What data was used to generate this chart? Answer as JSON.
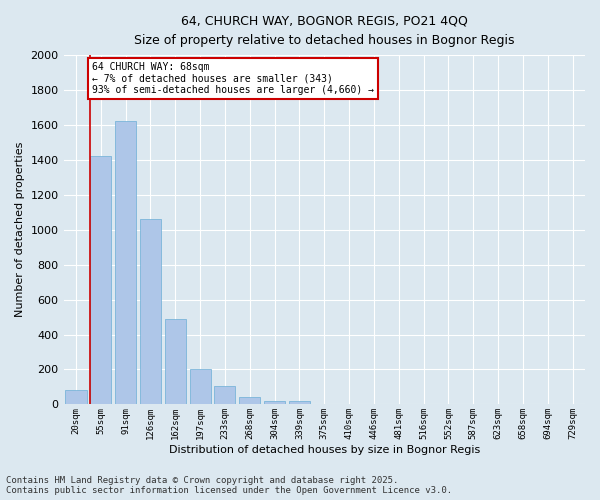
{
  "title_line1": "64, CHURCH WAY, BOGNOR REGIS, PO21 4QQ",
  "title_line2": "Size of property relative to detached houses in Bognor Regis",
  "xlabel": "Distribution of detached houses by size in Bognor Regis",
  "ylabel": "Number of detached properties",
  "categories": [
    "20sqm",
    "55sqm",
    "91sqm",
    "126sqm",
    "162sqm",
    "197sqm",
    "233sqm",
    "268sqm",
    "304sqm",
    "339sqm",
    "375sqm",
    "410sqm",
    "446sqm",
    "481sqm",
    "516sqm",
    "552sqm",
    "587sqm",
    "623sqm",
    "658sqm",
    "694sqm",
    "729sqm"
  ],
  "values": [
    85,
    1420,
    1620,
    1060,
    490,
    205,
    108,
    42,
    22,
    18,
    0,
    0,
    0,
    0,
    0,
    0,
    0,
    0,
    0,
    0,
    0
  ],
  "bar_color": "#aec6e8",
  "bar_edge_color": "#6baed6",
  "red_line_color": "#cc0000",
  "annotation_box_color": "#ffffff",
  "annotation_box_edge_color": "#cc0000",
  "background_color": "#dce8f0",
  "grid_color": "#ffffff",
  "ylim": [
    0,
    2000
  ],
  "yticks": [
    0,
    200,
    400,
    600,
    800,
    1000,
    1200,
    1400,
    1600,
    1800,
    2000
  ],
  "subject_label": "64 CHURCH WAY: 68sqm",
  "annotation_line1": "← 7% of detached houses are smaller (343)",
  "annotation_line2": "93% of semi-detached houses are larger (4,660) →",
  "footer_line1": "Contains HM Land Registry data © Crown copyright and database right 2025.",
  "footer_line2": "Contains public sector information licensed under the Open Government Licence v3.0.",
  "footer_fontsize": 6.5
}
